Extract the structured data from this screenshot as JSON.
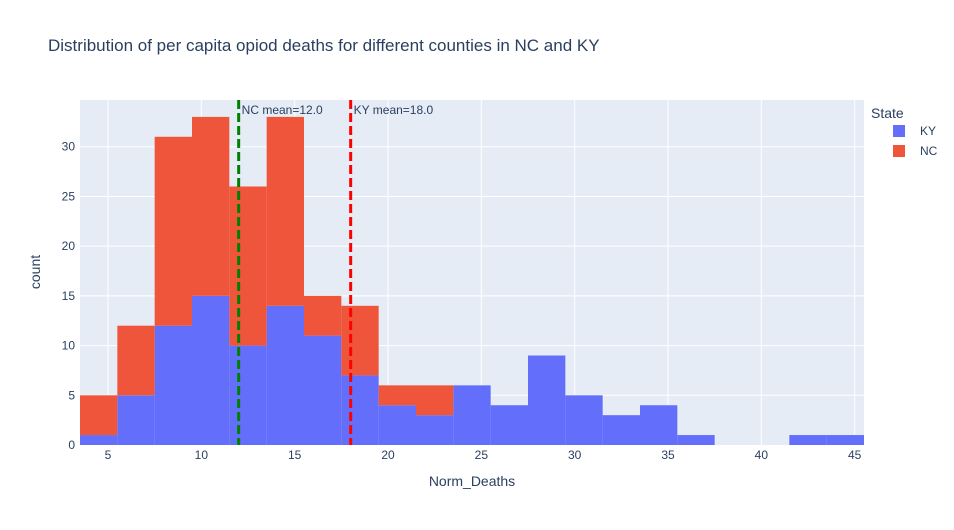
{
  "chart_data": {
    "type": "bar",
    "barmode": "stack",
    "title": "Distribution of per capita opiod deaths for different counties in NC and KY",
    "xlabel": "Norm_Deaths",
    "ylabel": "count",
    "xlim": [
      3.5,
      45.5
    ],
    "ylim": [
      0,
      34.7
    ],
    "bin_start": 3.5,
    "bin_width": 2,
    "x_ticks": [
      5,
      10,
      15,
      20,
      25,
      30,
      35,
      40,
      45
    ],
    "y_ticks": [
      0,
      5,
      10,
      15,
      20,
      25,
      30
    ],
    "grid": true,
    "legend": {
      "title": "State",
      "position": "top-right",
      "entries": [
        "KY",
        "NC"
      ]
    },
    "series": [
      {
        "name": "KY",
        "color": "#636efa",
        "values": [
          1,
          5,
          12,
          15,
          10,
          14,
          11,
          7,
          4,
          3,
          6,
          4,
          9,
          5,
          3,
          4,
          1,
          0,
          0,
          1,
          1
        ]
      },
      {
        "name": "NC",
        "color": "#ef553b",
        "values": [
          4,
          7,
          19,
          18,
          16,
          19,
          4,
          7,
          2,
          3,
          0,
          0,
          0,
          0,
          0,
          0,
          0,
          0,
          0,
          0,
          0
        ]
      }
    ],
    "annotations": [
      {
        "x": 12.0,
        "label": "NC mean=12.0",
        "color": "#008000",
        "style": "dash"
      },
      {
        "x": 18.0,
        "label": "KY mean=18.0",
        "color": "#ff0000",
        "style": "dash"
      }
    ]
  }
}
